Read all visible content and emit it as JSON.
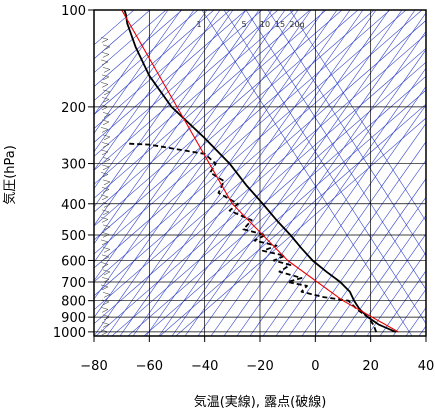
{
  "chart_data": {
    "type": "line",
    "xlabel": "気温(実線), 露点(破線)",
    "ylabel": "気圧(hPa)",
    "xlim": [
      -80,
      40
    ],
    "ylim": [
      1030,
      100
    ],
    "yscale": "log",
    "grid": true,
    "x_ticks": [
      -80,
      -60,
      -40,
      -20,
      0,
      20,
      40
    ],
    "y_ticks": [
      100,
      200,
      300,
      400,
      500,
      600,
      700,
      800,
      900,
      1000
    ],
    "mixing_ratio_labels": [
      "1",
      "5",
      "10",
      "15",
      "20g"
    ],
    "mixing_ratio_values": [
      1,
      5,
      10,
      15,
      20
    ],
    "series": [
      {
        "kind": "temperature",
        "style": "solid",
        "color": "#000000",
        "points": [
          {
            "p": 1000,
            "t": 29
          },
          {
            "p": 950,
            "t": 23
          },
          {
            "p": 900,
            "t": 19
          },
          {
            "p": 850,
            "t": 16
          },
          {
            "p": 800,
            "t": 14
          },
          {
            "p": 750,
            "t": 12.5
          },
          {
            "p": 700,
            "t": 9
          },
          {
            "p": 650,
            "t": 4
          },
          {
            "p": 600,
            "t": -1
          },
          {
            "p": 550,
            "t": -5
          },
          {
            "p": 500,
            "t": -9
          },
          {
            "p": 450,
            "t": -14
          },
          {
            "p": 400,
            "t": -19
          },
          {
            "p": 350,
            "t": -25
          },
          {
            "p": 300,
            "t": -31
          },
          {
            "p": 250,
            "t": -40
          },
          {
            "p": 200,
            "t": -52
          },
          {
            "p": 160,
            "t": -60
          },
          {
            "p": 130,
            "t": -65
          },
          {
            "p": 110,
            "t": -68
          },
          {
            "p": 103,
            "t": -68.5
          },
          {
            "p": 100,
            "t": -69
          }
        ]
      },
      {
        "kind": "dewpoint",
        "style": "dashed",
        "color": "#000000",
        "points": [
          {
            "p": 1000,
            "t": 22
          },
          {
            "p": 950,
            "t": 21
          },
          {
            "p": 900,
            "t": 19
          },
          {
            "p": 850,
            "t": 15
          },
          {
            "p": 800,
            "t": 12
          },
          {
            "p": 780,
            "t": 3
          },
          {
            "p": 750,
            "t": -5
          },
          {
            "p": 720,
            "t": -3
          },
          {
            "p": 700,
            "t": -10
          },
          {
            "p": 680,
            "t": -5
          },
          {
            "p": 650,
            "t": -13
          },
          {
            "p": 620,
            "t": -9
          },
          {
            "p": 600,
            "t": -15
          },
          {
            "p": 580,
            "t": -11
          },
          {
            "p": 560,
            "t": -19
          },
          {
            "p": 540,
            "t": -14
          },
          {
            "p": 520,
            "t": -22
          },
          {
            "p": 500,
            "t": -18
          },
          {
            "p": 480,
            "t": -26
          },
          {
            "p": 450,
            "t": -23
          },
          {
            "p": 420,
            "t": -31
          },
          {
            "p": 400,
            "t": -28
          },
          {
            "p": 370,
            "t": -35
          },
          {
            "p": 340,
            "t": -33
          },
          {
            "p": 320,
            "t": -38
          },
          {
            "p": 300,
            "t": -36
          },
          {
            "p": 280,
            "t": -40
          },
          {
            "p": 262,
            "t": -60
          },
          {
            "p": 260,
            "t": -68
          }
        ]
      },
      {
        "kind": "parcel",
        "style": "solid",
        "color": "#ee0000",
        "points": [
          {
            "p": 1000,
            "t": 30
          },
          {
            "p": 800,
            "t": 10
          },
          {
            "p": 600,
            "t": -10
          },
          {
            "p": 400,
            "t": -30
          },
          {
            "p": 200,
            "t": -50
          },
          {
            "p": 100,
            "t": -70
          }
        ]
      }
    ],
    "colors": {
      "temperature": "#000000",
      "dewpoint": "#000000",
      "parcel": "#ee0000",
      "reference_lines": "#3344cc",
      "grid": "#000000"
    }
  }
}
